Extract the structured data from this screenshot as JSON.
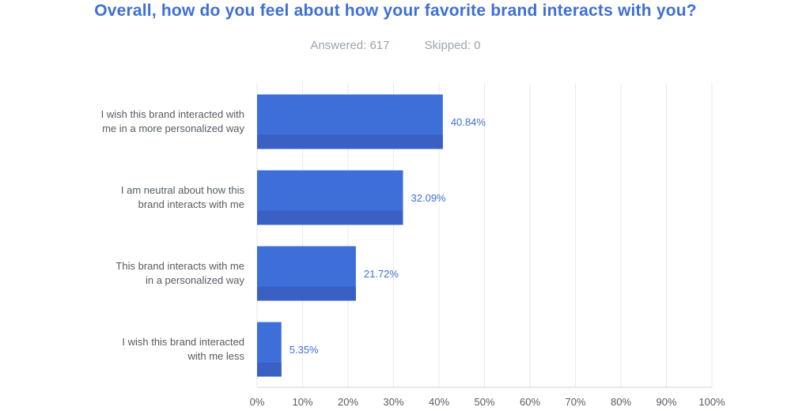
{
  "title": "Overall, how do you feel about how your favorite brand interacts with you?",
  "stats": {
    "answered": "Answered: 617",
    "skipped": "Skipped: 0"
  },
  "colors": {
    "title": "#3e6fd8",
    "bar": "#3e6fd8",
    "bar_shade": "#3a60c4",
    "value_label": "#3e6fd8",
    "grid": "#e6e9ed",
    "axis_text": "#555b62",
    "stats_text": "#9aa3ad"
  },
  "chart_data": {
    "type": "bar",
    "orientation": "horizontal",
    "title": "Overall, how do you feel about how your favorite brand interacts with you?",
    "categories": [
      [
        "I wish this brand interacted with",
        "me in a more personalized way"
      ],
      [
        "I am neutral about how this",
        "brand interacts with me"
      ],
      [
        "This brand interacts with me",
        "in a personalized way"
      ],
      [
        "I wish this brand interacted",
        "with me less"
      ]
    ],
    "values": [
      40.84,
      32.09,
      21.72,
      5.35
    ],
    "value_labels": [
      "40.84%",
      "32.09%",
      "21.72%",
      "5.35%"
    ],
    "xlim": [
      0,
      100
    ],
    "xticks": [
      0,
      10,
      20,
      30,
      40,
      50,
      60,
      70,
      80,
      90,
      100
    ],
    "xtick_labels": [
      "0%",
      "10%",
      "20%",
      "30%",
      "40%",
      "50%",
      "60%",
      "70%",
      "80%",
      "90%",
      "100%"
    ],
    "grid": true,
    "legend": "none"
  }
}
